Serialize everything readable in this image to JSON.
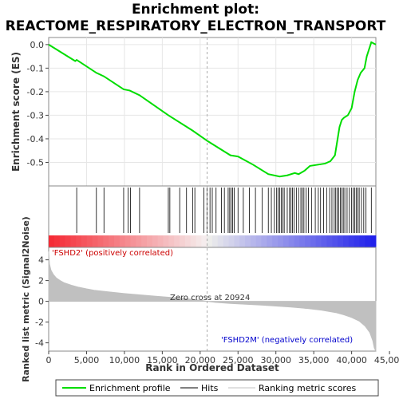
{
  "chart_data": {
    "type": "line",
    "title_line1": "Enrichment plot:",
    "title_line2": "REACTOME_RESPIRATORY_ELECTRON_TRANSPORT",
    "xlabel": "Rank in Ordered Dataset",
    "ylabel_top": "Enrichment score (ES)",
    "ylabel_bottom": "Ranked list metric (Signal2Noise)",
    "xlim": [
      0,
      43200
    ],
    "ylim_es": [
      -0.6,
      0.03
    ],
    "ylim_metric": [
      -4.8,
      5.2
    ],
    "x_ticks": [
      0,
      5000,
      10000,
      15000,
      20000,
      25000,
      30000,
      35000,
      40000,
      45000
    ],
    "x_tick_labels": [
      "0",
      "5,000",
      "10,000",
      "15,000",
      "20,000",
      "25,000",
      "30,000",
      "35,000",
      "40,000",
      "45,000"
    ],
    "es_ticks": [
      0.0,
      -0.1,
      -0.2,
      -0.3,
      -0.4,
      -0.5
    ],
    "es_tick_labels": [
      "0.0",
      "-0.1",
      "-0.2",
      "-0.3",
      "-0.4",
      "-0.5"
    ],
    "metric_ticks": [
      4,
      2,
      0,
      -2,
      -4
    ],
    "metric_tick_labels": [
      "4",
      "2",
      "0",
      "-2",
      "-4"
    ],
    "zero_cross_rank": 20924,
    "zero_cross_label": "Zero cross at 20924",
    "pos_label": "'FSHD2' (positively correlated)",
    "neg_label": "'FSHD2M' (negatively correlated)",
    "es_curve": {
      "x": [
        0,
        3500,
        3700,
        6300,
        7300,
        9900,
        10700,
        12000,
        15800,
        19000,
        21000,
        24000,
        25000,
        27000,
        29000,
        30500,
        31500,
        32500,
        33000,
        33800,
        34500,
        35500,
        36500,
        37200,
        37800,
        38100,
        38400,
        38700,
        39000,
        39500,
        40000,
        40400,
        40800,
        41200,
        41700,
        42000,
        42600,
        43200
      ],
      "y": [
        0.0,
        -0.07,
        -0.065,
        -0.12,
        -0.135,
        -0.19,
        -0.195,
        -0.215,
        -0.3,
        -0.365,
        -0.41,
        -0.47,
        -0.475,
        -0.51,
        -0.55,
        -0.56,
        -0.555,
        -0.545,
        -0.55,
        -0.535,
        -0.515,
        -0.51,
        -0.505,
        -0.495,
        -0.47,
        -0.41,
        -0.35,
        -0.32,
        -0.31,
        -0.3,
        -0.27,
        -0.2,
        -0.15,
        -0.12,
        -0.1,
        -0.05,
        0.01,
        0.0
      ]
    },
    "hits": [
      3700,
      6300,
      7300,
      9900,
      10500,
      10800,
      12000,
      15800,
      16000,
      17300,
      18200,
      19000,
      19300,
      20500,
      20900,
      21300,
      21600,
      22100,
      22800,
      23200,
      23700,
      23900,
      24100,
      24300,
      24500,
      25000,
      25700,
      26500,
      27300,
      28200,
      29000,
      29400,
      29800,
      30100,
      30300,
      30500,
      30700,
      30900,
      31100,
      31500,
      31800,
      32000,
      32200,
      32400,
      32700,
      33000,
      33300,
      33500,
      33700,
      34000,
      34300,
      34700,
      35200,
      35600,
      35900,
      36300,
      36700,
      37100,
      37400,
      37700,
      37900,
      38100,
      38300,
      38500,
      38700,
      38900,
      39100,
      39400,
      39700,
      40000,
      40200,
      40400,
      40600,
      40800,
      41000,
      41300,
      41600,
      41900,
      42600
    ],
    "metric_curve": {
      "x": [
        0,
        100,
        300,
        600,
        1000,
        1500,
        2000,
        3000,
        4000,
        5000,
        6000,
        8000,
        10000,
        12000,
        14000,
        16000,
        18000,
        20000,
        20924,
        22000,
        24000,
        26000,
        28000,
        30000,
        32000,
        34000,
        36000,
        38000,
        39000,
        40000,
        41000,
        41800,
        42400,
        42800,
        43000,
        43200
      ],
      "y": [
        4.8,
        3.6,
        3.0,
        2.6,
        2.25,
        2.0,
        1.8,
        1.55,
        1.35,
        1.2,
        1.07,
        0.9,
        0.75,
        0.62,
        0.5,
        0.38,
        0.26,
        0.1,
        0.0,
        -0.1,
        -0.2,
        -0.28,
        -0.36,
        -0.45,
        -0.55,
        -0.68,
        -0.85,
        -1.1,
        -1.3,
        -1.55,
        -1.9,
        -2.4,
        -3.0,
        -3.8,
        -4.5,
        -4.8
      ]
    },
    "legend": [
      "Enrichment profile",
      "Hits",
      "Ranking metric scores"
    ],
    "colors": {
      "es_line": "#00dd00",
      "hits": "#000000",
      "metric_fill": "#c0c0c0",
      "pos_label": "#cc0000",
      "neg_label": "#0000cc",
      "zero_line": "#aaaaaa"
    }
  }
}
